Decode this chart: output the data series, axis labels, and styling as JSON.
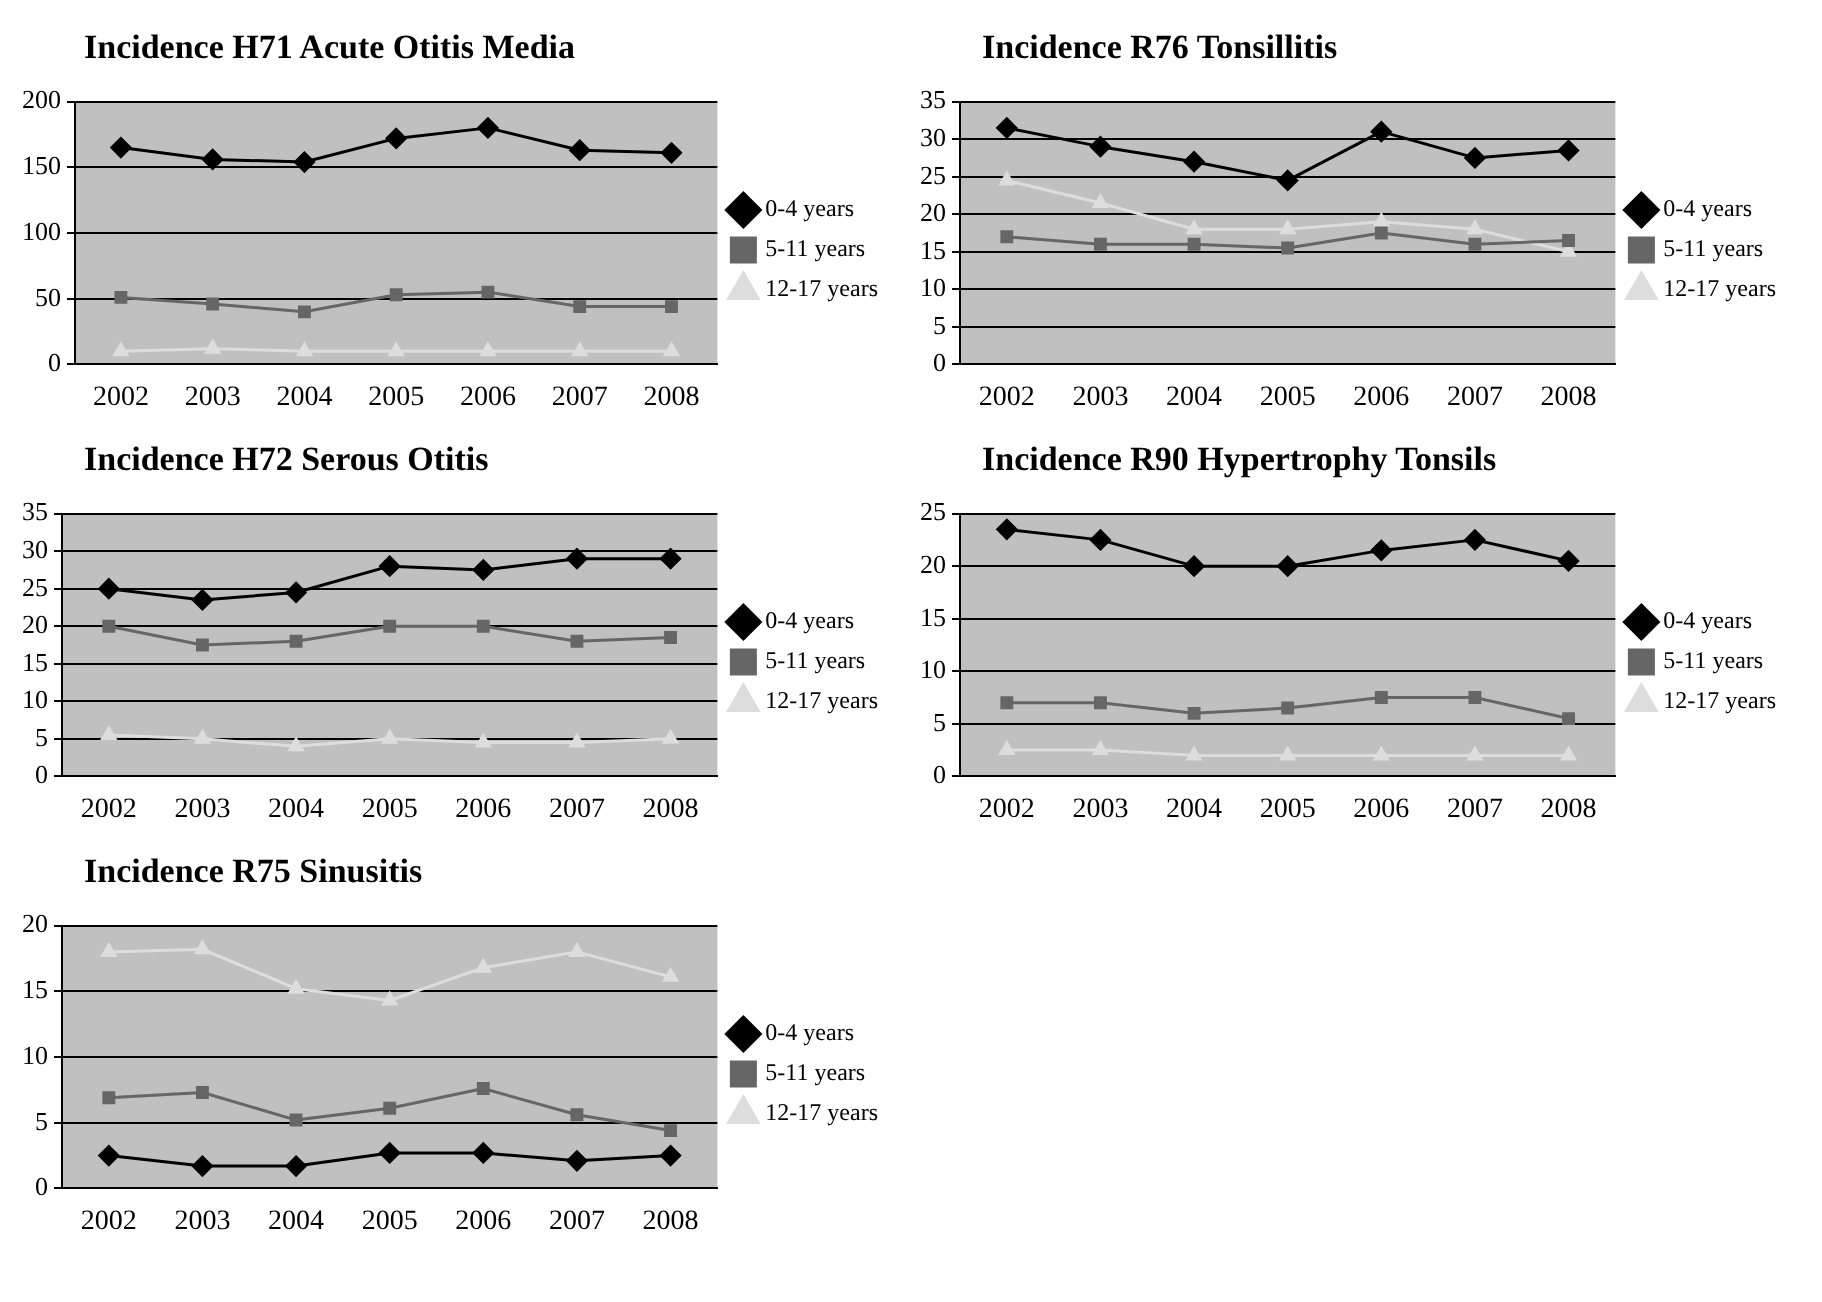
{
  "chart_data": [
    {
      "type": "line",
      "title": "Incidence H71 Acute Otitis Media",
      "categories": [
        "2002",
        "2003",
        "2004",
        "2005",
        "2006",
        "2007",
        "2008"
      ],
      "ylim": [
        0,
        200
      ],
      "yticks": [
        0,
        50,
        100,
        150,
        200
      ],
      "grid": "y",
      "legend": "right",
      "series": [
        {
          "name": "0-4 years",
          "color": "#000000",
          "marker": "diamond",
          "values": [
            165,
            156,
            154,
            172,
            180,
            163,
            161
          ]
        },
        {
          "name": "5-11 years",
          "color": "#666666",
          "marker": "square",
          "values": [
            51,
            46,
            40,
            53,
            55,
            44,
            44
          ]
        },
        {
          "name": "12-17 years",
          "color": "#dddddd",
          "marker": "triangle",
          "values": [
            10,
            12,
            10,
            10,
            10,
            10,
            10
          ]
        }
      ]
    },
    {
      "type": "line",
      "title": "Incidence R76 Tonsillitis",
      "categories": [
        "2002",
        "2003",
        "2004",
        "2005",
        "2006",
        "2007",
        "2008"
      ],
      "ylim": [
        0,
        35
      ],
      "yticks": [
        0,
        5,
        10,
        15,
        20,
        25,
        30,
        35
      ],
      "grid": "y",
      "legend": "right",
      "series": [
        {
          "name": "0-4 years",
          "color": "#000000",
          "marker": "diamond",
          "values": [
            31.5,
            29,
            27,
            24.5,
            31,
            27.5,
            28.5
          ]
        },
        {
          "name": "5-11 years",
          "color": "#666666",
          "marker": "square",
          "values": [
            17,
            16,
            16,
            15.5,
            17.5,
            16,
            16.5
          ]
        },
        {
          "name": "12-17 years",
          "color": "#dddddd",
          "marker": "triangle",
          "values": [
            24.5,
            21.5,
            18,
            18,
            19,
            18,
            15
          ]
        }
      ]
    },
    {
      "type": "line",
      "title": "Incidence H72 Serous Otitis",
      "categories": [
        "2002",
        "2003",
        "2004",
        "2005",
        "2006",
        "2007",
        "2008"
      ],
      "ylim": [
        0,
        35
      ],
      "yticks": [
        0,
        5,
        10,
        15,
        20,
        25,
        30,
        35
      ],
      "grid": "y",
      "legend": "right",
      "series": [
        {
          "name": "0-4 years",
          "color": "#000000",
          "marker": "diamond",
          "values": [
            25,
            23.5,
            24.5,
            28,
            27.5,
            29,
            29
          ]
        },
        {
          "name": "5-11 years",
          "color": "#666666",
          "marker": "square",
          "values": [
            20,
            17.5,
            18,
            20,
            20,
            18,
            18.5
          ]
        },
        {
          "name": "12-17 years",
          "color": "#dddddd",
          "marker": "triangle",
          "values": [
            5.5,
            5,
            4,
            5,
            4.5,
            4.5,
            5
          ]
        }
      ]
    },
    {
      "type": "line",
      "title": "Incidence R90 Hypertrophy Tonsils",
      "categories": [
        "2002",
        "2003",
        "2004",
        "2005",
        "2006",
        "2007",
        "2008"
      ],
      "ylim": [
        0,
        25
      ],
      "yticks": [
        0,
        5,
        10,
        15,
        20,
        25
      ],
      "grid": "y",
      "legend": "right",
      "series": [
        {
          "name": "0-4 years",
          "color": "#000000",
          "marker": "diamond",
          "values": [
            23.5,
            22.5,
            20,
            20,
            21.5,
            22.5,
            20.5
          ]
        },
        {
          "name": "5-11 years",
          "color": "#666666",
          "marker": "square",
          "values": [
            7,
            7,
            6,
            6.5,
            7.5,
            7.5,
            5.5
          ]
        },
        {
          "name": "12-17 years",
          "color": "#dddddd",
          "marker": "triangle",
          "values": [
            2.5,
            2.5,
            2,
            2,
            2,
            2,
            2
          ]
        }
      ]
    },
    {
      "type": "line",
      "title": "Incidence R75 Sinusitis",
      "categories": [
        "2002",
        "2003",
        "2004",
        "2005",
        "2006",
        "2007",
        "2008"
      ],
      "ylim": [
        0,
        20
      ],
      "yticks": [
        0,
        5,
        10,
        15,
        20
      ],
      "grid": "y",
      "legend": "right",
      "series": [
        {
          "name": "0-4 years",
          "color": "#000000",
          "marker": "diamond",
          "values": [
            2.5,
            1.7,
            1.7,
            2.7,
            2.7,
            2.1,
            2.5
          ]
        },
        {
          "name": "5-11 years",
          "color": "#666666",
          "marker": "square",
          "values": [
            6.9,
            7.3,
            5.2,
            6.1,
            7.6,
            5.6,
            4.4
          ]
        },
        {
          "name": "12-17 years",
          "color": "#dddddd",
          "marker": "triangle",
          "values": [
            18,
            18.2,
            15.2,
            14.3,
            16.8,
            18,
            16.1
          ]
        }
      ]
    }
  ]
}
